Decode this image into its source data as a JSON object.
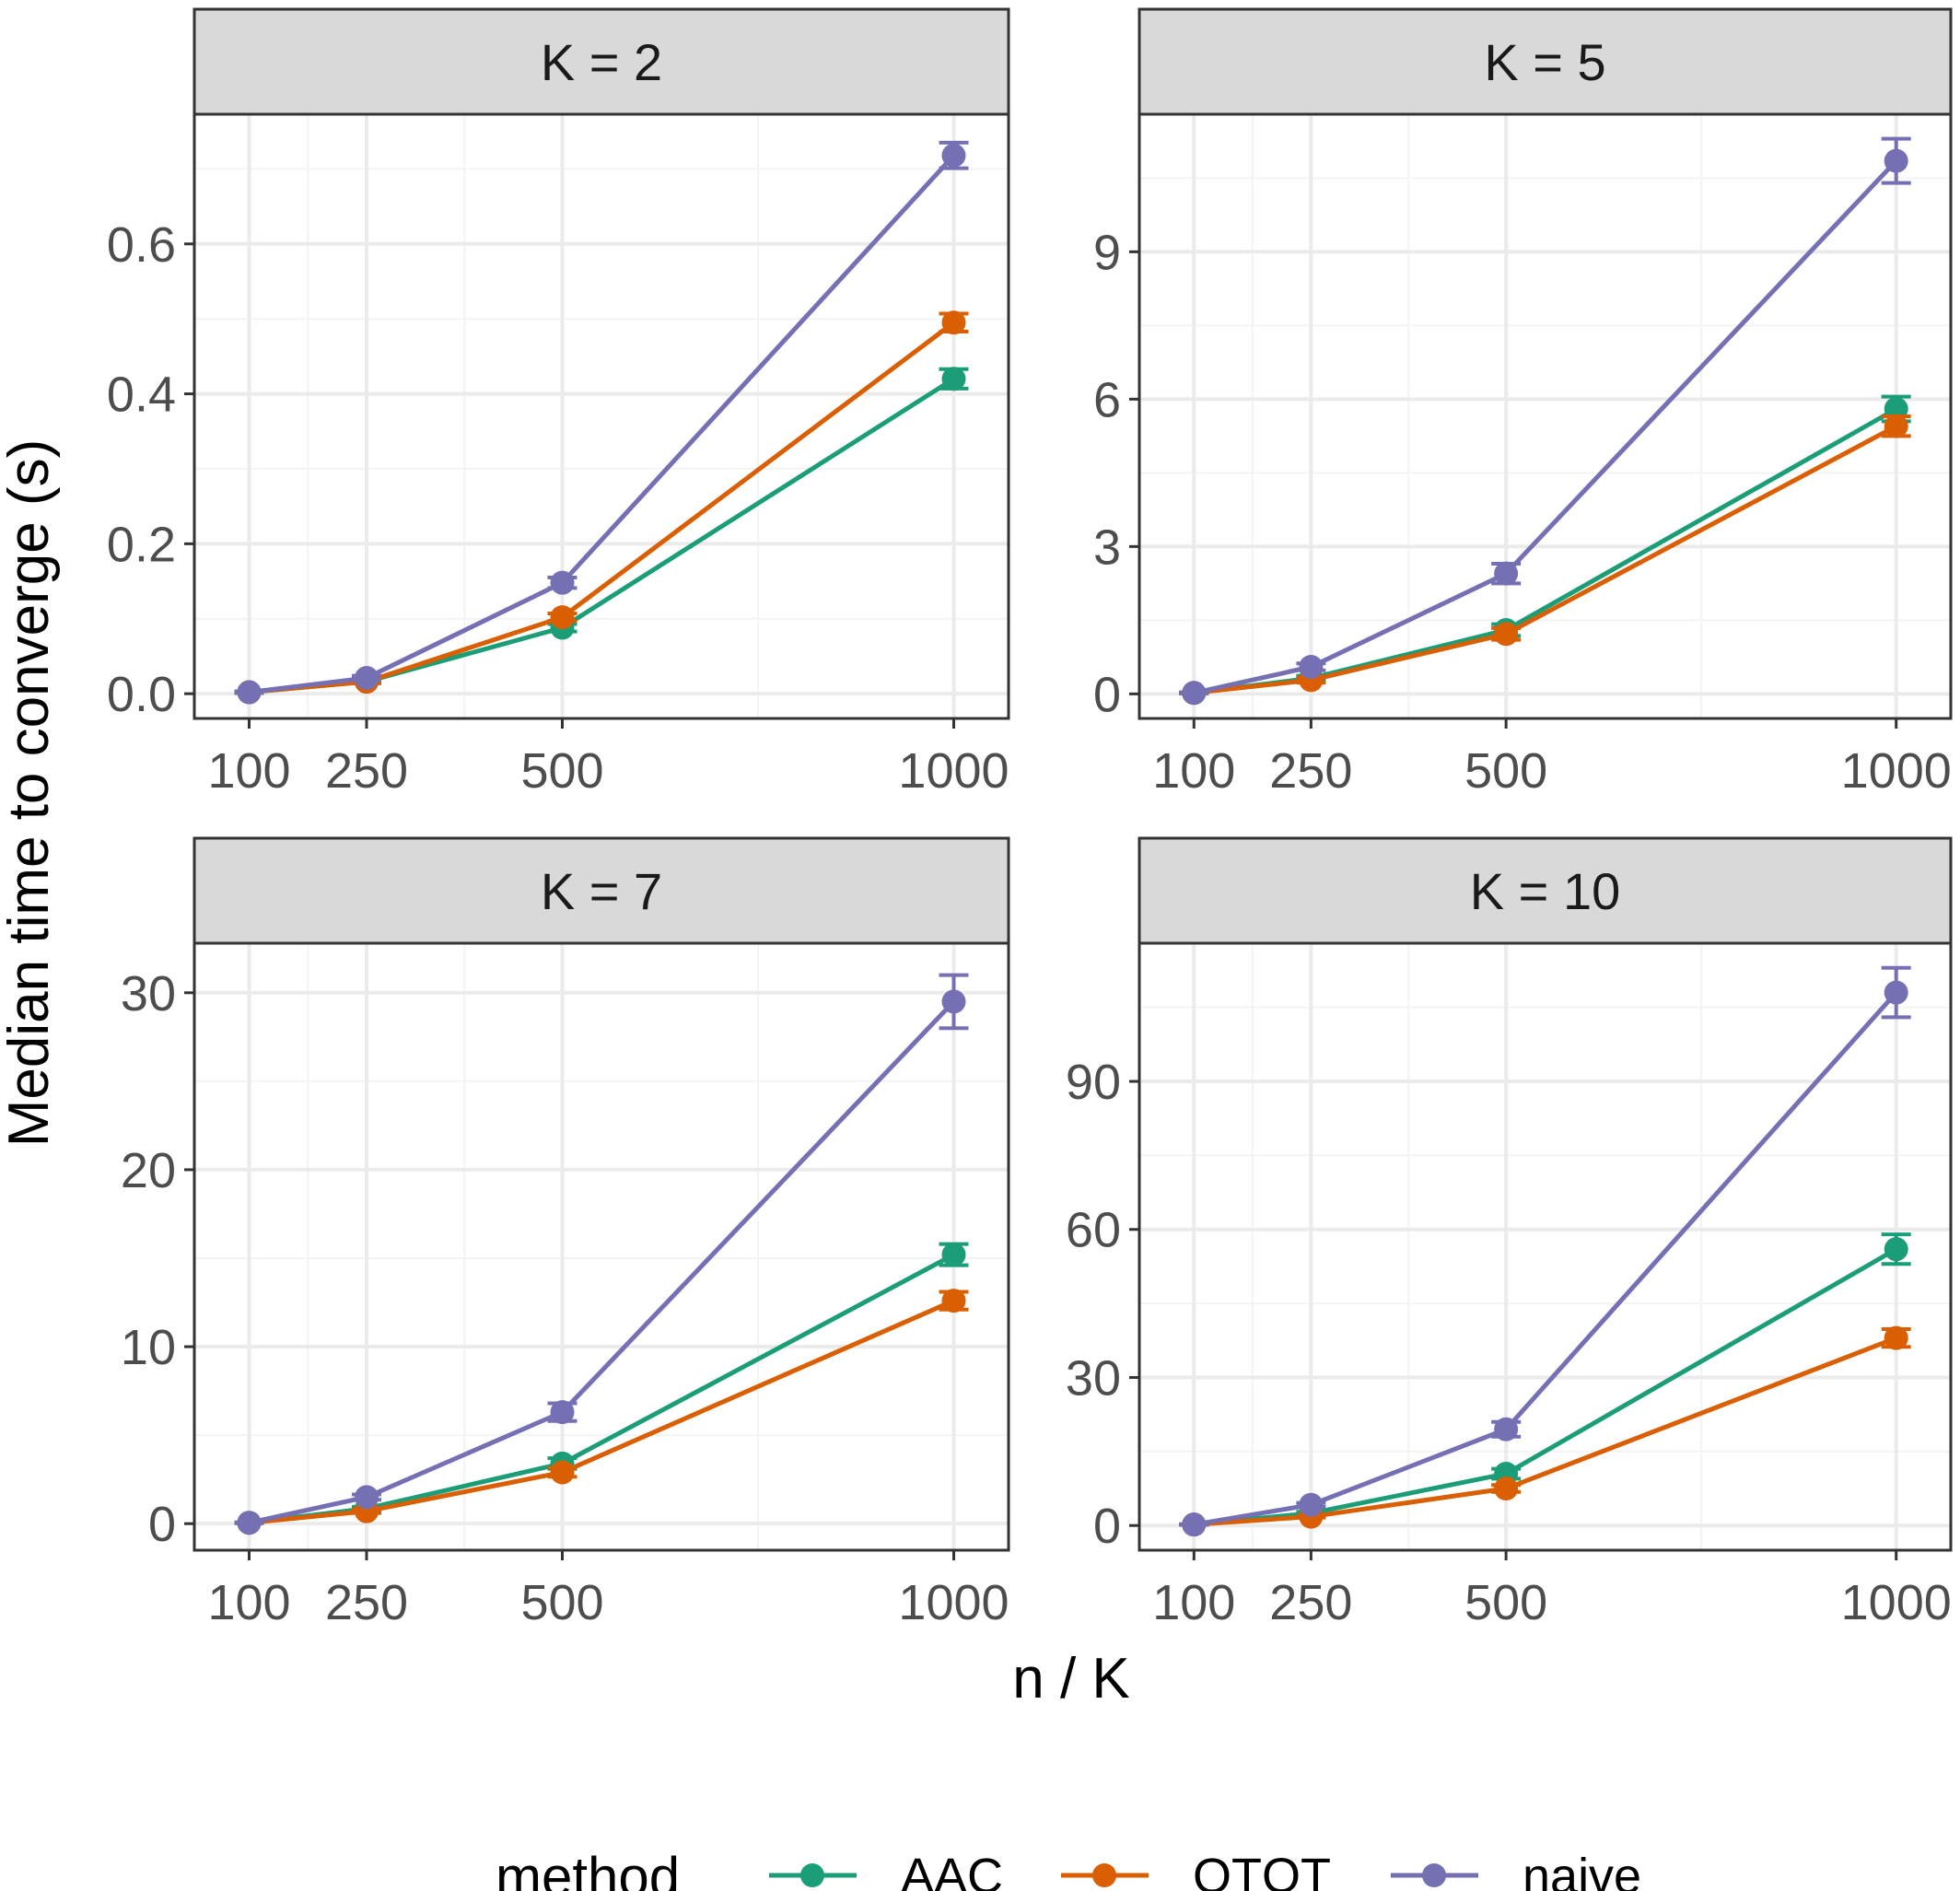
{
  "figure": {
    "ylabel": "Median time to converge (s)",
    "xlabel": "n / K",
    "legend_title": "method"
  },
  "colors": {
    "AAC": "#1b9e77",
    "OTQT": "#d95f02",
    "naive": "#7570b3",
    "strip_fill": "#d9d9d9",
    "panel_border": "#333333",
    "grid_major": "#ebebeb",
    "grid_minor": "#f4f4f4",
    "tick_text": "#4d4d4d"
  },
  "chart_data": [
    {
      "type": "line",
      "title": "K = 2",
      "x": [
        100,
        250,
        500,
        1000
      ],
      "xticks": [
        "100",
        "250",
        "500",
        "1000"
      ],
      "xlim": [
        30,
        1070
      ],
      "ylim": [
        -0.033,
        0.773
      ],
      "yticks": [
        0.0,
        0.2,
        0.4,
        0.6
      ],
      "ytick_labels": [
        "0.0",
        "0.2",
        "0.4",
        "0.6"
      ],
      "series": [
        {
          "name": "AAC",
          "values": [
            0.002,
            0.016,
            0.088,
            0.42
          ],
          "err_low": [
            0.001,
            0.014,
            0.083,
            0.407
          ],
          "err_high": [
            0.003,
            0.018,
            0.093,
            0.433
          ]
        },
        {
          "name": "OTQT",
          "values": [
            0.002,
            0.016,
            0.102,
            0.495
          ],
          "err_low": [
            0.001,
            0.014,
            0.097,
            0.483
          ],
          "err_high": [
            0.003,
            0.018,
            0.107,
            0.507
          ]
        },
        {
          "name": "naive",
          "values": [
            0.002,
            0.021,
            0.148,
            0.718
          ],
          "err_low": [
            0.001,
            0.018,
            0.141,
            0.701
          ],
          "err_high": [
            0.003,
            0.024,
            0.155,
            0.735
          ]
        }
      ]
    },
    {
      "type": "line",
      "title": "K = 5",
      "x": [
        100,
        250,
        500,
        1000
      ],
      "xticks": [
        "100",
        "250",
        "500",
        "1000"
      ],
      "xlim": [
        30,
        1070
      ],
      "ylim": [
        -0.5,
        11.8
      ],
      "yticks": [
        0,
        3,
        6,
        9
      ],
      "ytick_labels": [
        "0",
        "3",
        "6",
        "9"
      ],
      "series": [
        {
          "name": "AAC",
          "values": [
            0.02,
            0.32,
            1.3,
            5.8
          ],
          "err_low": [
            0.01,
            0.27,
            1.18,
            5.55
          ],
          "err_high": [
            0.03,
            0.37,
            1.42,
            6.05
          ]
        },
        {
          "name": "OTQT",
          "values": [
            0.02,
            0.28,
            1.22,
            5.45
          ],
          "err_low": [
            0.01,
            0.23,
            1.1,
            5.25
          ],
          "err_high": [
            0.03,
            0.33,
            1.34,
            5.65
          ]
        },
        {
          "name": "naive",
          "values": [
            0.02,
            0.55,
            2.45,
            10.85
          ],
          "err_low": [
            0.01,
            0.48,
            2.25,
            10.4
          ],
          "err_high": [
            0.03,
            0.62,
            2.65,
            11.3
          ]
        }
      ]
    },
    {
      "type": "line",
      "title": "K = 7",
      "x": [
        100,
        250,
        500,
        1000
      ],
      "xticks": [
        "100",
        "250",
        "500",
        "1000"
      ],
      "xlim": [
        30,
        1070
      ],
      "ylim": [
        -1.5,
        32.8
      ],
      "yticks": [
        0,
        10,
        20,
        30
      ],
      "ytick_labels": [
        "0",
        "10",
        "20",
        "30"
      ],
      "series": [
        {
          "name": "AAC",
          "values": [
            0.05,
            0.85,
            3.4,
            15.2
          ],
          "err_low": [
            0.03,
            0.75,
            3.1,
            14.6
          ],
          "err_high": [
            0.07,
            0.95,
            3.7,
            15.8
          ]
        },
        {
          "name": "OTQT",
          "values": [
            0.05,
            0.7,
            2.9,
            12.6
          ],
          "err_low": [
            0.03,
            0.6,
            2.65,
            12.1
          ],
          "err_high": [
            0.07,
            0.8,
            3.15,
            13.1
          ]
        },
        {
          "name": "naive",
          "values": [
            0.05,
            1.5,
            6.3,
            29.5
          ],
          "err_low": [
            0.03,
            1.35,
            5.8,
            28.0
          ],
          "err_high": [
            0.07,
            1.65,
            6.8,
            31.0
          ]
        }
      ]
    },
    {
      "type": "line",
      "title": "K = 10",
      "x": [
        100,
        250,
        500,
        1000
      ],
      "xticks": [
        "100",
        "250",
        "500",
        "1000"
      ],
      "xlim": [
        30,
        1070
      ],
      "ylim": [
        -5,
        118
      ],
      "yticks": [
        0,
        30,
        60,
        90
      ],
      "ytick_labels": [
        "0",
        "30",
        "60",
        "90"
      ],
      "series": [
        {
          "name": "AAC",
          "values": [
            0.2,
            2.5,
            10.5,
            56
          ],
          "err_low": [
            0.15,
            2.2,
            9.5,
            53
          ],
          "err_high": [
            0.25,
            2.8,
            11.5,
            59
          ]
        },
        {
          "name": "OTQT",
          "values": [
            0.2,
            1.8,
            7.5,
            38
          ],
          "err_low": [
            0.15,
            1.6,
            6.8,
            36.2
          ],
          "err_high": [
            0.25,
            2.0,
            8.2,
            39.8
          ]
        },
        {
          "name": "naive",
          "values": [
            0.2,
            4.2,
            19.5,
            108
          ],
          "err_low": [
            0.15,
            3.8,
            18.0,
            103
          ],
          "err_high": [
            0.25,
            4.6,
            21.0,
            113
          ]
        }
      ]
    }
  ],
  "legend": {
    "position": "bottom",
    "items": [
      {
        "label": "AAC",
        "key": "AAC"
      },
      {
        "label": "OTQT",
        "key": "OTQT"
      },
      {
        "label": "naive",
        "key": "naive"
      }
    ]
  }
}
